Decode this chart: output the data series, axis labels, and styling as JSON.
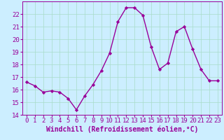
{
  "x": [
    0,
    1,
    2,
    3,
    4,
    5,
    6,
    7,
    8,
    9,
    10,
    11,
    12,
    13,
    14,
    15,
    16,
    17,
    18,
    19,
    20,
    21,
    22,
    23
  ],
  "y": [
    16.6,
    16.3,
    15.8,
    15.9,
    15.8,
    15.3,
    14.4,
    15.5,
    16.4,
    17.5,
    18.9,
    21.4,
    22.5,
    22.5,
    21.9,
    19.4,
    17.6,
    18.1,
    20.6,
    21.0,
    19.2,
    17.6,
    16.7,
    16.7
  ],
  "line_color": "#990099",
  "marker": "D",
  "marker_size": 2.2,
  "bg_color": "#cceeff",
  "grid_color": "#aaddcc",
  "xlabel": "Windchill (Refroidissement éolien,°C)",
  "xlabel_color": "#990099",
  "tick_color": "#990099",
  "ylim": [
    14,
    23
  ],
  "yticks": [
    14,
    15,
    16,
    17,
    18,
    19,
    20,
    21,
    22
  ],
  "xticks": [
    0,
    1,
    2,
    3,
    4,
    5,
    6,
    7,
    8,
    9,
    10,
    11,
    12,
    13,
    14,
    15,
    16,
    17,
    18,
    19,
    20,
    21,
    22,
    23
  ],
  "linewidth": 1.0,
  "font_size": 6.5,
  "xlabel_fontsize": 7.0
}
